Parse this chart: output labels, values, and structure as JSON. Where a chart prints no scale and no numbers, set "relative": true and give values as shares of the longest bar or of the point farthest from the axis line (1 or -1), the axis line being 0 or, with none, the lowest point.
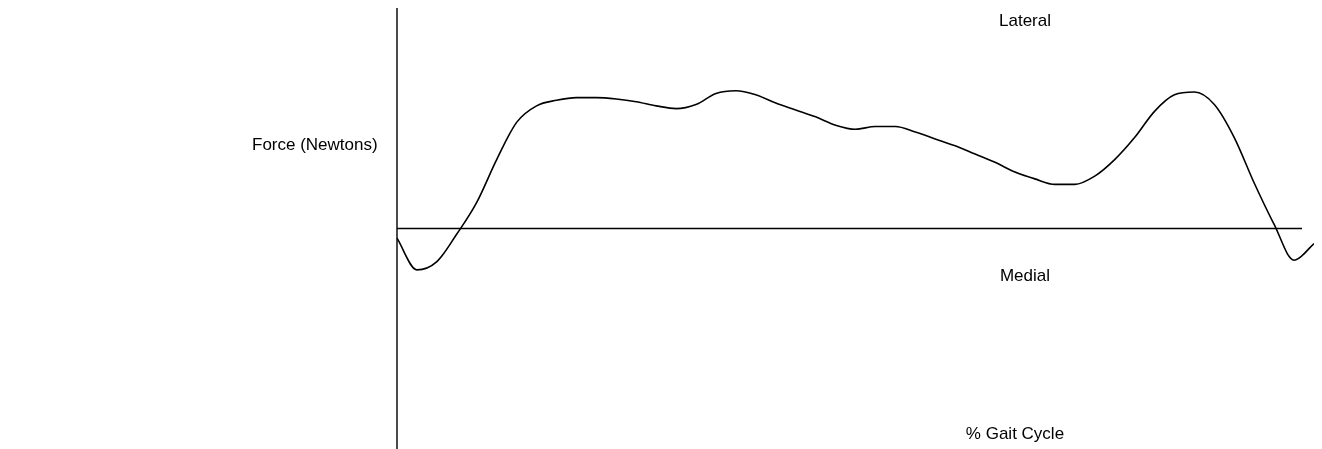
{
  "chart_data": {
    "type": "line",
    "relative": true,
    "ylabel": "Force (Newtons)",
    "annotations": [
      "Lateral",
      "Medial",
      "% Gait Cycle"
    ],
    "color": "#000000",
    "marker": "none",
    "legend": false,
    "categories": [
      null,
      null,
      null,
      null,
      null,
      null,
      null,
      null,
      null,
      null,
      null,
      null,
      null,
      null,
      null,
      null,
      null,
      null,
      null,
      null,
      null,
      null,
      null,
      null,
      null,
      null,
      null,
      null,
      null,
      null,
      null,
      null,
      null,
      null,
      null,
      null,
      null,
      null,
      null,
      null,
      null,
      null,
      null,
      null,
      null,
      null,
      null
    ],
    "values": [
      -0.07,
      -0.3,
      -0.24,
      -0.04,
      0.19,
      0.5,
      0.77,
      0.89,
      0.93,
      0.95,
      0.95,
      0.94,
      0.92,
      0.89,
      0.87,
      0.9,
      0.98,
      1,
      0.97,
      0.91,
      0.86,
      0.81,
      0.75,
      0.72,
      0.74,
      0.74,
      0.7,
      0.65,
      0.6,
      0.54,
      0.48,
      0.41,
      0.36,
      0.32,
      0.32,
      0.38,
      0.5,
      0.66,
      0.85,
      0.97,
      0.99,
      0.9,
      0.66,
      0.33,
      0.03,
      -0.23,
      -0.11
    ]
  }
}
